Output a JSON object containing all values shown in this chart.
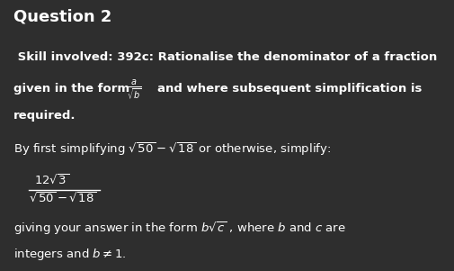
{
  "background_color": "#2e2e2e",
  "text_color": "#ffffff",
  "title": "Question 2",
  "title_fontsize": 13,
  "body_fontsize": 9.5,
  "figsize": [
    5.06,
    3.01
  ],
  "dpi": 100,
  "skill_line1": " Skill involved: 392c: Rationalise the denominator of a fraction",
  "skill_line2_pre": "given in the form ",
  "skill_line2_post": " and where subsequent simplification is",
  "skill_line3": "required.",
  "simplify_line": "By first simplifying $\\sqrt{50} - \\sqrt{18}$ or otherwise, simplify:",
  "giving_line1": "giving your answer in the form $b\\sqrt{c}$ , where $b$ and $c$ are",
  "giving_line2": "integers and $b \\neq 1$.",
  "frac_numerator": "$12\\sqrt{3}$",
  "frac_denominator": "$\\sqrt{50}-\\sqrt{18}$"
}
